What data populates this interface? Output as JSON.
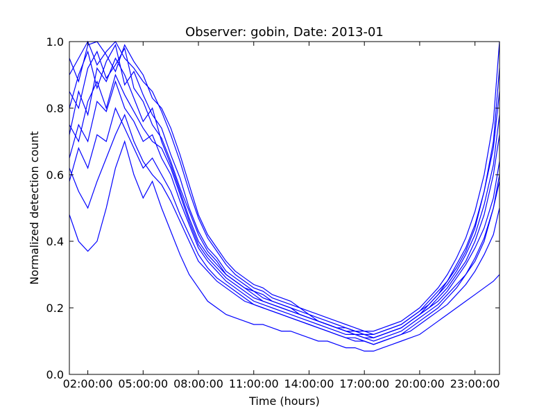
{
  "chart_data": {
    "type": "line",
    "title": "Observer: gobin, Date: 2013-01",
    "xlabel": "Time (hours)",
    "ylabel": "Normalized detection count",
    "x_tick_labels": [
      "02:00:00",
      "05:00:00",
      "08:00:00",
      "11:00:00",
      "14:00:00",
      "17:00:00",
      "20:00:00",
      "23:00:00"
    ],
    "x_tick_hours": [
      2,
      5,
      8,
      11,
      14,
      17,
      20,
      23
    ],
    "xlim_hours": [
      1,
      24.33
    ],
    "y_tick_labels": [
      "0.0",
      "0.2",
      "0.4",
      "0.6",
      "0.8",
      "1.0"
    ],
    "y_ticks": [
      0.0,
      0.2,
      0.4,
      0.6,
      0.8,
      1.0
    ],
    "ylim": [
      0,
      1
    ],
    "grid": false,
    "line_color": "#0000ff",
    "x_hours": [
      1,
      1.5,
      2,
      2.5,
      3,
      3.5,
      4,
      4.5,
      5,
      5.5,
      6,
      6.5,
      7,
      7.5,
      8,
      8.5,
      9,
      9.5,
      10,
      10.5,
      11,
      11.5,
      12,
      12.5,
      13,
      13.5,
      14,
      14.5,
      15,
      15.5,
      16,
      16.5,
      17,
      17.5,
      18,
      18.5,
      19,
      19.5,
      20,
      20.5,
      21,
      21.5,
      22,
      22.5,
      23,
      23.5,
      24,
      24.33
    ],
    "series": [
      {
        "values": [
          0.72,
          0.85,
          0.78,
          0.92,
          0.88,
          0.95,
          0.9,
          0.83,
          0.76,
          0.8,
          0.7,
          0.63,
          0.55,
          0.47,
          0.4,
          0.36,
          0.33,
          0.3,
          0.28,
          0.26,
          0.24,
          0.22,
          0.21,
          0.2,
          0.19,
          0.18,
          0.17,
          0.16,
          0.15,
          0.14,
          0.13,
          0.12,
          0.12,
          0.11,
          0.12,
          0.13,
          0.14,
          0.16,
          0.18,
          0.2,
          0.23,
          0.26,
          0.3,
          0.34,
          0.4,
          0.48,
          0.6,
          0.72
        ]
      },
      {
        "values": [
          0.8,
          0.9,
          0.97,
          0.86,
          0.94,
          0.99,
          0.87,
          0.91,
          0.84,
          0.78,
          0.74,
          0.66,
          0.59,
          0.5,
          0.43,
          0.38,
          0.35,
          0.31,
          0.29,
          0.27,
          0.25,
          0.24,
          0.22,
          0.21,
          0.2,
          0.18,
          0.17,
          0.16,
          0.15,
          0.14,
          0.14,
          0.13,
          0.12,
          0.12,
          0.13,
          0.14,
          0.15,
          0.17,
          0.19,
          0.22,
          0.25,
          0.28,
          0.33,
          0.38,
          0.45,
          0.55,
          0.68,
          0.85
        ]
      },
      {
        "values": [
          0.65,
          0.75,
          0.7,
          0.82,
          0.79,
          0.88,
          0.8,
          0.76,
          0.7,
          0.72,
          0.65,
          0.6,
          0.52,
          0.45,
          0.38,
          0.34,
          0.31,
          0.28,
          0.26,
          0.24,
          0.22,
          0.21,
          0.2,
          0.19,
          0.18,
          0.17,
          0.16,
          0.15,
          0.14,
          0.13,
          0.12,
          0.12,
          0.11,
          0.1,
          0.11,
          0.12,
          0.13,
          0.15,
          0.17,
          0.19,
          0.21,
          0.24,
          0.27,
          0.3,
          0.34,
          0.4,
          0.5,
          0.6
        ]
      },
      {
        "values": [
          0.9,
          0.95,
          1.0,
          0.93,
          0.97,
          1.0,
          0.95,
          0.92,
          0.88,
          0.85,
          0.79,
          0.72,
          0.64,
          0.55,
          0.47,
          0.41,
          0.37,
          0.33,
          0.3,
          0.28,
          0.26,
          0.25,
          0.23,
          0.22,
          0.21,
          0.2,
          0.18,
          0.17,
          0.16,
          0.15,
          0.14,
          0.13,
          0.13,
          0.12,
          0.13,
          0.14,
          0.15,
          0.17,
          0.19,
          0.21,
          0.24,
          0.28,
          0.32,
          0.37,
          0.44,
          0.55,
          0.7,
          0.92
        ]
      },
      {
        "values": [
          0.58,
          0.68,
          0.62,
          0.72,
          0.7,
          0.8,
          0.74,
          0.68,
          0.62,
          0.65,
          0.6,
          0.55,
          0.48,
          0.42,
          0.36,
          0.32,
          0.29,
          0.27,
          0.25,
          0.23,
          0.21,
          0.2,
          0.19,
          0.18,
          0.17,
          0.16,
          0.15,
          0.14,
          0.13,
          0.12,
          0.11,
          0.11,
          0.1,
          0.09,
          0.1,
          0.11,
          0.12,
          0.13,
          0.15,
          0.17,
          0.19,
          0.21,
          0.24,
          0.27,
          0.31,
          0.36,
          0.42,
          0.5
        ]
      },
      {
        "values": [
          0.85,
          0.8,
          0.92,
          0.97,
          0.89,
          0.93,
          0.98,
          0.86,
          0.82,
          0.75,
          0.71,
          0.64,
          0.56,
          0.49,
          0.42,
          0.37,
          0.34,
          0.3,
          0.28,
          0.26,
          0.25,
          0.23,
          0.22,
          0.21,
          0.2,
          0.19,
          0.18,
          0.16,
          0.15,
          0.14,
          0.13,
          0.13,
          0.12,
          0.11,
          0.12,
          0.13,
          0.14,
          0.16,
          0.18,
          0.21,
          0.24,
          0.27,
          0.31,
          0.36,
          0.42,
          0.51,
          0.63,
          0.78
        ]
      },
      {
        "values": [
          0.48,
          0.4,
          0.37,
          0.4,
          0.5,
          0.62,
          0.7,
          0.6,
          0.53,
          0.58,
          0.5,
          0.43,
          0.36,
          0.3,
          0.26,
          0.22,
          0.2,
          0.18,
          0.17,
          0.16,
          0.15,
          0.15,
          0.14,
          0.13,
          0.13,
          0.12,
          0.11,
          0.1,
          0.1,
          0.09,
          0.08,
          0.08,
          0.07,
          0.07,
          0.08,
          0.09,
          0.1,
          0.11,
          0.12,
          0.14,
          0.16,
          0.18,
          0.2,
          0.22,
          0.24,
          0.26,
          0.28,
          0.3
        ]
      },
      {
        "values": [
          0.75,
          0.7,
          0.82,
          0.88,
          0.8,
          0.9,
          0.84,
          0.79,
          0.74,
          0.7,
          0.68,
          0.62,
          0.54,
          0.46,
          0.39,
          0.35,
          0.32,
          0.29,
          0.27,
          0.25,
          0.23,
          0.22,
          0.21,
          0.2,
          0.19,
          0.18,
          0.17,
          0.16,
          0.15,
          0.14,
          0.13,
          0.12,
          0.11,
          0.11,
          0.12,
          0.13,
          0.14,
          0.16,
          0.18,
          0.2,
          0.22,
          0.25,
          0.29,
          0.33,
          0.38,
          0.44,
          0.53,
          0.64
        ]
      },
      {
        "values": [
          0.95,
          0.88,
          0.99,
          1.0,
          0.96,
          0.91,
          0.99,
          0.94,
          0.9,
          0.83,
          0.8,
          0.74,
          0.66,
          0.57,
          0.48,
          0.42,
          0.38,
          0.34,
          0.31,
          0.29,
          0.27,
          0.26,
          0.24,
          0.23,
          0.22,
          0.2,
          0.19,
          0.18,
          0.17,
          0.16,
          0.15,
          0.14,
          0.13,
          0.13,
          0.14,
          0.15,
          0.16,
          0.18,
          0.2,
          0.23,
          0.26,
          0.3,
          0.35,
          0.41,
          0.49,
          0.6,
          0.76,
          1.0
        ]
      },
      {
        "values": [
          0.62,
          0.55,
          0.5,
          0.58,
          0.65,
          0.72,
          0.78,
          0.7,
          0.64,
          0.6,
          0.57,
          0.52,
          0.46,
          0.4,
          0.34,
          0.31,
          0.28,
          0.26,
          0.24,
          0.22,
          0.21,
          0.2,
          0.19,
          0.18,
          0.17,
          0.16,
          0.15,
          0.14,
          0.13,
          0.12,
          0.11,
          0.1,
          0.1,
          0.09,
          0.1,
          0.11,
          0.12,
          0.14,
          0.16,
          0.18,
          0.2,
          0.23,
          0.26,
          0.3,
          0.35,
          0.41,
          0.5,
          0.58
        ]
      }
    ]
  }
}
